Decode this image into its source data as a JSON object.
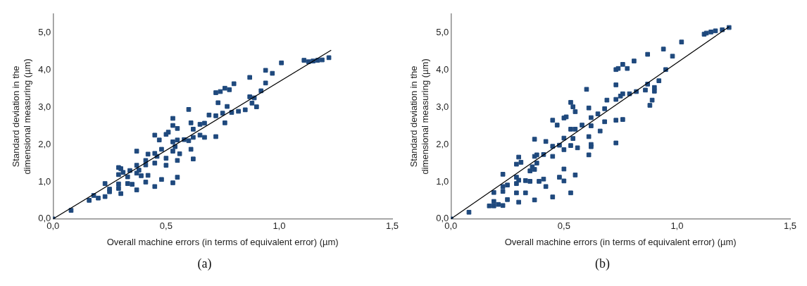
{
  "chart_data": [
    {
      "type": "scatter",
      "xlabel": "Overall machine errors (in terms of equivalent error) (µm)",
      "ylabel": "Standard deviation in the\ndimensional measuring (µm)",
      "annotations": [
        "(a)"
      ],
      "grid": false,
      "legend": false,
      "xlim": [
        0,
        1.5
      ],
      "xticks": [
        {
          "value": 0,
          "label": "0,0"
        },
        {
          "value": 0.5,
          "label": "0,5"
        },
        {
          "value": 1,
          "label": "1,0"
        },
        {
          "value": 1.5,
          "label": "1,5"
        }
      ],
      "ylim": [
        0,
        5.5
      ],
      "yticks": [
        {
          "value": 0,
          "label": "0,0"
        },
        {
          "value": 1,
          "label": "1,0"
        },
        {
          "value": 2,
          "label": "2,0"
        },
        {
          "value": 3,
          "label": "3,0"
        },
        {
          "value": 4,
          "label": "4,0"
        },
        {
          "value": 5,
          "label": "5,0"
        }
      ],
      "series": [
        {
          "color": "#1f497d",
          "marker": "square",
          "x": [
            0,
            0.08,
            0.16,
            0.18,
            0.2,
            0.23,
            0.23,
            0.25,
            0.25,
            0.29,
            0.29,
            0.29,
            0.29,
            0.3,
            0.3,
            0.31,
            0.33,
            0.33,
            0.34,
            0.35,
            0.37,
            0.37,
            0.37,
            0.37,
            0.38,
            0.39,
            0.41,
            0.41,
            0.41,
            0.42,
            0.42,
            0.45,
            0.45,
            0.45,
            0.45,
            0.46,
            0.47,
            0.48,
            0.48,
            0.5,
            0.5,
            0.5,
            0.51,
            0.53,
            0.53,
            0.53,
            0.53,
            0.53,
            0.54,
            0.55,
            0.55,
            0.55,
            0.55,
            0.56,
            0.58,
            0.6,
            0.6,
            0.61,
            0.61,
            0.62,
            0.62,
            0.62,
            0.65,
            0.65,
            0.67,
            0.67,
            0.69,
            0.72,
            0.72,
            0.72,
            0.73,
            0.74,
            0.75,
            0.76,
            0.76,
            0.77,
            0.78,
            0.79,
            0.8,
            0.82,
            0.85,
            0.87,
            0.87,
            0.88,
            0.89,
            0.9,
            0.92,
            0.94,
            0.94,
            0.97,
            1.01,
            1.11,
            1.13,
            1.15,
            1.17,
            1.19,
            1.22
          ],
          "values": [
            0,
            0.23,
            0.5,
            0.63,
            0.56,
            0.95,
            0.6,
            0.8,
            0.73,
            1.38,
            1.19,
            0.94,
            0.82,
            0.68,
            1.35,
            1.25,
            1.13,
            0.95,
            1.3,
            0.93,
            1.82,
            1.44,
            1.23,
            0.78,
            1.31,
            1.16,
            1.57,
            1.45,
            0.99,
            1.74,
            1.17,
            2.25,
            1.76,
            1.5,
            0.87,
            1.68,
            2.12,
            1.87,
            1.06,
            2.27,
            1.63,
            1.44,
            2.33,
            2.7,
            2.07,
            1.82,
            0.97,
            2.51,
            1.94,
            2.43,
            2.12,
            1.57,
            1.12,
            1.75,
            2.13,
            2.94,
            2.1,
            2.58,
            1.87,
            2.41,
            1.61,
            2.19,
            2.54,
            2.25,
            2.57,
            2.19,
            2.79,
            3.39,
            2.77,
            2.21,
            3.12,
            3.42,
            2.84,
            3.51,
            2.58,
            3.02,
            3.47,
            2.86,
            3.63,
            2.89,
            2.93,
            3.8,
            3.28,
            3.11,
            3.25,
            3.01,
            3.44,
            3.99,
            3.65,
            3.91,
            4.19,
            4.26,
            4.22,
            4.24,
            4.26,
            4.27,
            4.33
          ]
        },
        {
          "type": "line",
          "marker": "none",
          "color": "#000000",
          "x": [
            0,
            1.23
          ],
          "values": [
            0,
            4.53
          ]
        }
      ]
    },
    {
      "type": "scatter",
      "xlabel": "Overall machine errors (in terms of equivalent error) (µm)",
      "ylabel": "Standard deviation in the\ndimensional measuring (µm)",
      "annotations": [
        "(b)"
      ],
      "grid": false,
      "legend": false,
      "xlim": [
        0,
        1.5
      ],
      "xticks": [
        {
          "value": 0,
          "label": "0,0"
        },
        {
          "value": 0.5,
          "label": "0,5"
        },
        {
          "value": 1,
          "label": "1,0"
        },
        {
          "value": 1.5,
          "label": "1,5"
        }
      ],
      "ylim": [
        0,
        5.5
      ],
      "yticks": [
        {
          "value": 0,
          "label": "0,0"
        },
        {
          "value": 1,
          "label": "1,0"
        },
        {
          "value": 2,
          "label": "2,0"
        },
        {
          "value": 3,
          "label": "3,0"
        },
        {
          "value": 4,
          "label": "4,0"
        },
        {
          "value": 5,
          "label": "5,0"
        }
      ],
      "series": [
        {
          "color": "#1f497d",
          "marker": "square",
          "x": [
            0,
            0.08,
            0.17,
            0.19,
            0.19,
            0.19,
            0.21,
            0.23,
            0.23,
            0.23,
            0.23,
            0.25,
            0.25,
            0.29,
            0.29,
            0.29,
            0.29,
            0.3,
            0.3,
            0.3,
            0.31,
            0.33,
            0.33,
            0.35,
            0.35,
            0.36,
            0.37,
            0.37,
            0.37,
            0.37,
            0.38,
            0.38,
            0.39,
            0.41,
            0.41,
            0.42,
            0.42,
            0.45,
            0.45,
            0.45,
            0.45,
            0.47,
            0.48,
            0.48,
            0.5,
            0.5,
            0.5,
            0.5,
            0.5,
            0.51,
            0.53,
            0.53,
            0.53,
            0.53,
            0.54,
            0.54,
            0.55,
            0.55,
            0.55,
            0.56,
            0.58,
            0.6,
            0.61,
            0.61,
            0.61,
            0.62,
            0.62,
            0.62,
            0.62,
            0.65,
            0.66,
            0.68,
            0.68,
            0.69,
            0.73,
            0.73,
            0.73,
            0.73,
            0.73,
            0.74,
            0.75,
            0.76,
            0.76,
            0.76,
            0.78,
            0.79,
            0.81,
            0.82,
            0.86,
            0.87,
            0.87,
            0.88,
            0.89,
            0.9,
            0.9,
            0.92,
            0.94,
            0.95,
            0.98,
            1.02,
            1.12,
            1.13,
            1.15,
            1.17,
            1.2,
            1.23
          ],
          "values": [
            0,
            0.18,
            0.35,
            0.71,
            0.47,
            0.35,
            0.39,
            1.2,
            0.87,
            0.74,
            0.36,
            0.91,
            0.52,
            1.47,
            1.12,
            0.95,
            0.7,
            1.66,
            1.04,
            0.45,
            1.52,
            1.03,
            0.7,
            1.29,
            1.01,
            1.4,
            2.14,
            1.68,
            1.33,
            0.51,
            1.5,
            1.72,
            1.01,
            1.73,
            1.07,
            2.08,
            0.87,
            2.65,
            1.95,
            1.68,
            0.59,
            2.52,
            1.98,
            1.12,
            2.71,
            2.17,
            1.86,
            1.34,
            1.02,
            2.74,
            3.13,
            2.41,
            1.97,
            0.7,
            3.01,
            2.16,
            2.88,
            2.41,
            1.18,
            1.91,
            2.52,
            3.48,
            2.21,
            2.98,
            1.72,
            2.72,
            1.94,
            2.5,
            2.0,
            2.82,
            2.36,
            2.96,
            2.61,
            3.19,
            4.01,
            3.6,
            3.21,
            2.65,
            2.04,
            4.04,
            3.3,
            4.15,
            3.36,
            2.67,
            4.04,
            3.36,
            4.24,
            3.42,
            3.46,
            4.42,
            3.62,
            3.05,
            3.19,
            3.53,
            3.43,
            3.71,
            4.56,
            4.01,
            4.37,
            4.75,
            4.96,
            4.99,
            5.02,
            5.05,
            5.08,
            5.14
          ]
        },
        {
          "type": "line",
          "marker": "none",
          "color": "#000000",
          "x": [
            0,
            1.23
          ],
          "values": [
            0,
            5.16
          ]
        }
      ]
    }
  ]
}
